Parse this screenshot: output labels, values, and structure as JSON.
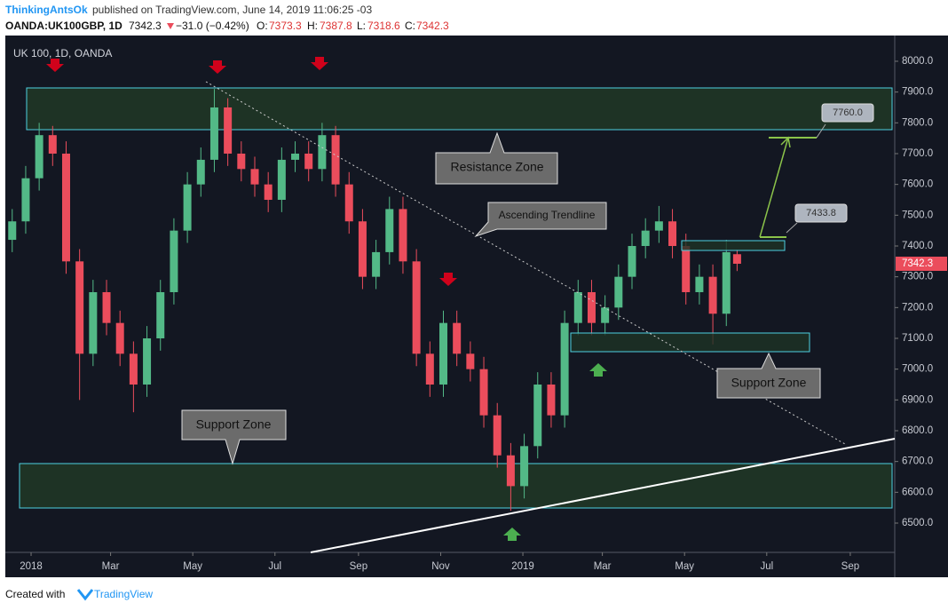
{
  "header": {
    "author": "ThinkingAntsOk",
    "published": "published on TradingView.com, June 14, 2019 11:06:25 -03",
    "symbol": "OANDA:UK100GBP, 1D",
    "change": "−31.0 (−0.42%)",
    "o_label": "O:",
    "h_label": "H:",
    "l_label": "L:",
    "c_label": "C:"
  },
  "footer": {
    "created": "Created with",
    "brand": "TradingView"
  },
  "chart_data": {
    "type": "candlestick",
    "title": "UK 100, 1D, OANDA",
    "up_color": "#53b987",
    "down_color": "#eb4d5c",
    "x": [
      -14,
      -4,
      6,
      16,
      26,
      36,
      46,
      56,
      66,
      76,
      86,
      96,
      106,
      116,
      126,
      136,
      146,
      156,
      166,
      176,
      186,
      196,
      206,
      216,
      226,
      236,
      246,
      256,
      266,
      276,
      286,
      296,
      306,
      316,
      326,
      336,
      346,
      356,
      366,
      376,
      386,
      396,
      406,
      416,
      426,
      436,
      446,
      456,
      466,
      476,
      486,
      496,
      506,
      516,
      524
    ],
    "open": [
      7420,
      7480,
      7620,
      7760,
      7700,
      7350,
      7050,
      7250,
      7150,
      7050,
      6950,
      7100,
      7250,
      7450,
      7600,
      7680,
      7850,
      7700,
      7650,
      7600,
      7550,
      7680,
      7700,
      7650,
      7760,
      7600,
      7480,
      7300,
      7380,
      7520,
      7350,
      7050,
      6950,
      7150,
      7050,
      7000,
      6850,
      6720,
      6620,
      6750,
      6950,
      6850,
      7150,
      7250,
      7150,
      7200,
      7300,
      7400,
      7450,
      7480,
      7400,
      7250,
      7300,
      7180,
      7373.3
    ],
    "high": [
      7520,
      7660,
      7800,
      7790,
      7740,
      7390,
      7290,
      7290,
      7190,
      7090,
      7140,
      7290,
      7490,
      7640,
      7720,
      7910,
      7880,
      7740,
      7690,
      7640,
      7720,
      7740,
      7740,
      7800,
      7790,
      7640,
      7520,
      7420,
      7560,
      7560,
      7390,
      7090,
      7190,
      7190,
      7090,
      7040,
      6890,
      6760,
      6790,
      6990,
      6990,
      7190,
      7290,
      7290,
      7240,
      7340,
      7440,
      7490,
      7530,
      7520,
      7440,
      7340,
      7340,
      7420,
      7387.8
    ],
    "low": [
      7380,
      7440,
      7580,
      7660,
      7310,
      6900,
      7010,
      7110,
      7010,
      6860,
      6910,
      7060,
      7210,
      7410,
      7560,
      7640,
      7660,
      7610,
      7560,
      7510,
      7510,
      7640,
      7610,
      7610,
      7560,
      7440,
      7260,
      7260,
      7340,
      7310,
      7010,
      6910,
      6910,
      7010,
      6960,
      6810,
      6680,
      6540,
      6580,
      6710,
      6810,
      6810,
      7110,
      7110,
      7110,
      7160,
      7260,
      7360,
      7410,
      7360,
      7210,
      7210,
      7080,
      7140,
      7318.6
    ],
    "close": [
      7480,
      7620,
      7760,
      7700,
      7350,
      7050,
      7250,
      7150,
      7050,
      6950,
      7100,
      7250,
      7450,
      7600,
      7680,
      7850,
      7700,
      7650,
      7600,
      7550,
      7680,
      7700,
      7650,
      7760,
      7600,
      7480,
      7300,
      7380,
      7520,
      7350,
      7050,
      6950,
      7150,
      7050,
      7000,
      6850,
      6720,
      6620,
      6750,
      6950,
      6850,
      7150,
      7250,
      7150,
      7200,
      7300,
      7400,
      7450,
      7480,
      7400,
      7250,
      7300,
      7180,
      7380,
      7342.3
    ],
    "xlim": [
      -17.8,
      641
    ],
    "xticks": [
      {
        "value": 0,
        "label": "2018"
      },
      {
        "value": 59,
        "label": "Mar"
      },
      {
        "value": 120,
        "label": "May"
      },
      {
        "value": 181,
        "label": "Jul"
      },
      {
        "value": 243,
        "label": "Sep"
      },
      {
        "value": 304,
        "label": "Nov"
      },
      {
        "value": 365,
        "label": "2019"
      },
      {
        "value": 424,
        "label": "Mar"
      },
      {
        "value": 485,
        "label": "May"
      },
      {
        "value": 546,
        "label": "Jul"
      },
      {
        "value": 608,
        "label": "Sep"
      }
    ],
    "ylim": [
      6404.8,
      8083.6
    ],
    "yticks": [
      {
        "value": 6500,
        "label": "6500.0"
      },
      {
        "value": 6600,
        "label": "6600.0"
      },
      {
        "value": 6700,
        "label": "6700.0"
      },
      {
        "value": 6800,
        "label": "6800.0"
      },
      {
        "value": 6900,
        "label": "6900.0"
      },
      {
        "value": 7000,
        "label": "7000.0"
      },
      {
        "value": 7100,
        "label": "7100.0"
      },
      {
        "value": 7200,
        "label": "7200.0"
      },
      {
        "value": 7300,
        "label": "7300.0"
      },
      {
        "value": 7400,
        "label": "7400.0"
      },
      {
        "value": 7500,
        "label": "7500.0"
      },
      {
        "value": 7600,
        "label": "7600.0"
      },
      {
        "value": 7700,
        "label": "7700.0"
      },
      {
        "value": 7800,
        "label": "7800.0"
      },
      {
        "value": 7900,
        "label": "7900.0"
      },
      {
        "value": 8000,
        "label": "8000.0"
      }
    ],
    "annotations": {
      "resistance": "Resistance Zone",
      "trendline": "Ascending Trendline",
      "support_left": "Support Zone",
      "support_right": "Support Zone",
      "target_high": "7760.0",
      "target_low": "7433.8"
    }
  }
}
